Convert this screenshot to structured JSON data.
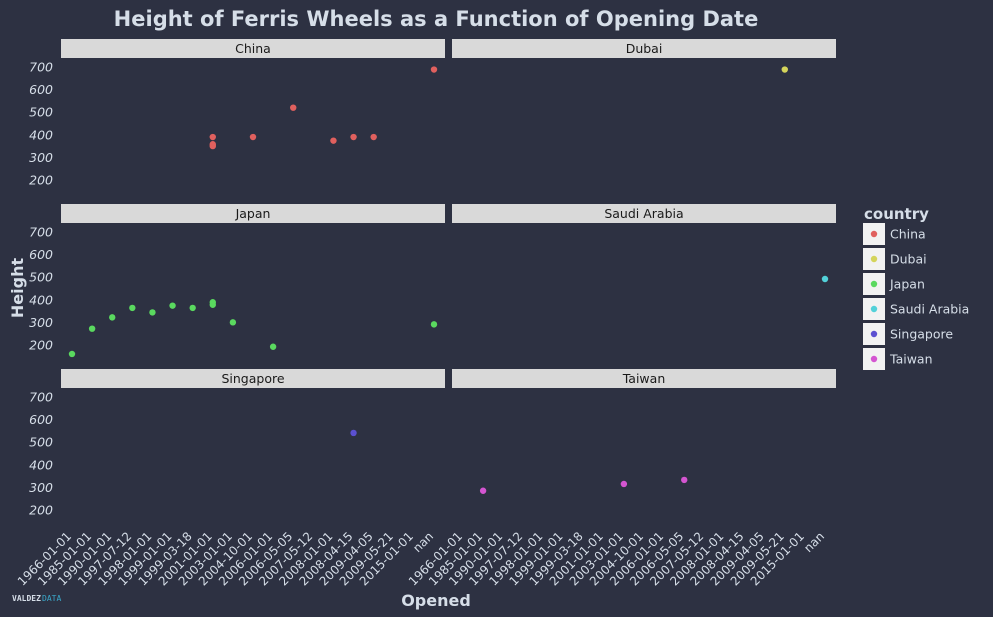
{
  "chart_data": {
    "type": "scatter",
    "title": "Height of Ferris Wheels as a Function of Opening Date",
    "xlabel": "Opened",
    "ylabel": "Height",
    "legend_title": "country",
    "legend_position": "right",
    "y_ticks": [
      200,
      300,
      400,
      500,
      600,
      700
    ],
    "ylim": [
      120,
      740
    ],
    "x_categories": [
      "1966-01-01",
      "1985-01-01",
      "1990-01-01",
      "1997-07-12",
      "1998-01-01",
      "1999-01-01",
      "1999-03-18",
      "2001-01-01",
      "2003-01-01",
      "2004-10-01",
      "2006-01-01",
      "2006-05-05",
      "2007-05-12",
      "2008-01-01",
      "2008-04-15",
      "2009-04-05",
      "2009-05-21",
      "2015-01-01",
      "nan"
    ],
    "series": [
      {
        "name": "China",
        "color": "#e0605e",
        "points": [
          {
            "x": "2001-01-01",
            "y": 390
          },
          {
            "x": "2001-01-01",
            "y": 358
          },
          {
            "x": "2001-01-01",
            "y": 350
          },
          {
            "x": "2004-10-01",
            "y": 390
          },
          {
            "x": "2006-05-05",
            "y": 520
          },
          {
            "x": "2008-01-01",
            "y": 374
          },
          {
            "x": "2008-04-15",
            "y": 390
          },
          {
            "x": "2009-04-05",
            "y": 390
          },
          {
            "x": "nan",
            "y": 689
          }
        ]
      },
      {
        "name": "Dubai",
        "color": "#d4d45b",
        "points": [
          {
            "x": "2009-05-21",
            "y": 689
          }
        ]
      },
      {
        "name": "Japan",
        "color": "#5ad95f",
        "points": [
          {
            "x": "1966-01-01",
            "y": 160
          },
          {
            "x": "1985-01-01",
            "y": 272
          },
          {
            "x": "1990-01-01",
            "y": 322
          },
          {
            "x": "1997-07-12",
            "y": 364
          },
          {
            "x": "1998-01-01",
            "y": 344
          },
          {
            "x": "1999-01-01",
            "y": 374
          },
          {
            "x": "1999-03-18",
            "y": 364
          },
          {
            "x": "2001-01-01",
            "y": 389
          },
          {
            "x": "2001-01-01",
            "y": 378
          },
          {
            "x": "2003-01-01",
            "y": 300
          },
          {
            "x": "2006-01-01",
            "y": 192
          },
          {
            "x": "nan",
            "y": 291
          }
        ]
      },
      {
        "name": "Saudi Arabia",
        "color": "#52d1d9",
        "points": [
          {
            "x": "nan",
            "y": 492
          }
        ]
      },
      {
        "name": "Singapore",
        "color": "#5b50d1",
        "points": [
          {
            "x": "2008-04-15",
            "y": 541
          }
        ]
      },
      {
        "name": "Taiwan",
        "color": "#d455d1",
        "points": [
          {
            "x": "1985-01-01",
            "y": 285
          },
          {
            "x": "2003-01-01",
            "y": 315
          },
          {
            "x": "2006-05-05",
            "y": 333
          }
        ]
      }
    ],
    "panels": [
      {
        "name": "China"
      },
      {
        "name": "Dubai"
      },
      {
        "name": "Japan"
      },
      {
        "name": "Saudi Arabia"
      },
      {
        "name": "Singapore"
      },
      {
        "name": "Taiwan"
      }
    ]
  },
  "logo": {
    "part1": "VALDEZ",
    "part2": "DATA"
  }
}
